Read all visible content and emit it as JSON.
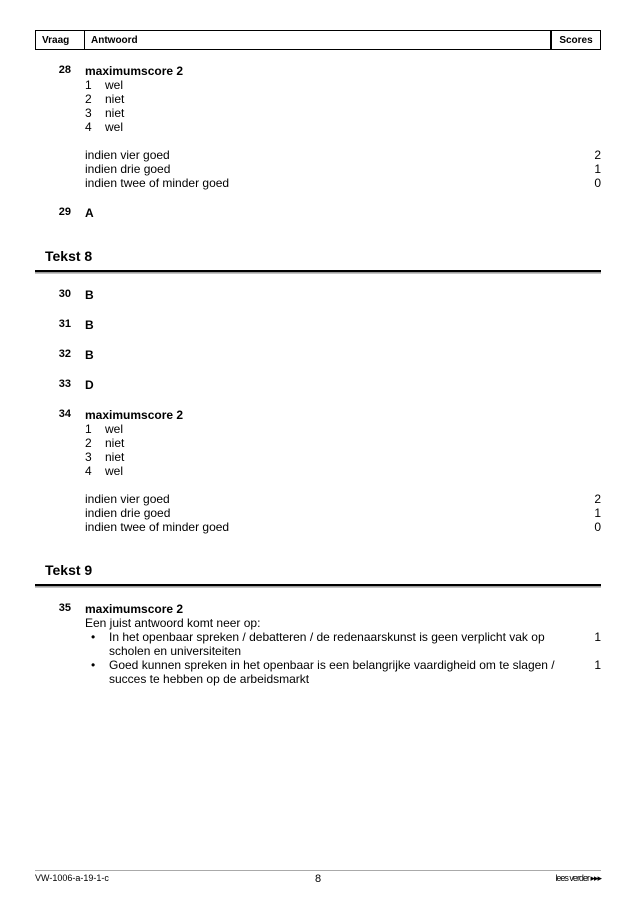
{
  "header": {
    "vraag": "Vraag",
    "antwoord": "Antwoord",
    "scores": "Scores"
  },
  "q28": {
    "num": "28",
    "max": "maximumscore 2",
    "rows": [
      {
        "n": "1",
        "v": "wel"
      },
      {
        "n": "2",
        "v": "niet"
      },
      {
        "n": "3",
        "v": "niet"
      },
      {
        "n": "4",
        "v": "wel"
      }
    ],
    "scoring": [
      {
        "t": "indien vier goed",
        "s": "2"
      },
      {
        "t": "indien drie goed",
        "s": "1"
      },
      {
        "t": "indien twee of minder goed",
        "s": "0"
      }
    ]
  },
  "q29": {
    "num": "29",
    "ans": "A"
  },
  "section8": "Tekst 8",
  "q30": {
    "num": "30",
    "ans": "B"
  },
  "q31": {
    "num": "31",
    "ans": "B"
  },
  "q32": {
    "num": "32",
    "ans": "B"
  },
  "q33": {
    "num": "33",
    "ans": "D"
  },
  "q34": {
    "num": "34",
    "max": "maximumscore 2",
    "rows": [
      {
        "n": "1",
        "v": "wel"
      },
      {
        "n": "2",
        "v": "niet"
      },
      {
        "n": "3",
        "v": "niet"
      },
      {
        "n": "4",
        "v": "wel"
      }
    ],
    "scoring": [
      {
        "t": "indien vier goed",
        "s": "2"
      },
      {
        "t": "indien drie goed",
        "s": "1"
      },
      {
        "t": "indien twee of minder goed",
        "s": "0"
      }
    ]
  },
  "section9": "Tekst 9",
  "q35": {
    "num": "35",
    "max": "maximumscore 2",
    "intro": "Een juist antwoord komt neer op:",
    "bullets": [
      {
        "t": "In het openbaar spreken / debatteren / de redenaarskunst is geen verplicht vak op scholen en universiteiten",
        "s": "1"
      },
      {
        "t": "Goed kunnen spreken in het openbaar is een belangrijke vaardigheid om te slagen / succes te hebben op de arbeidsmarkt",
        "s": "1"
      }
    ]
  },
  "footer": {
    "left": "VW-1006-a-19-1-c",
    "mid": "8",
    "right": "lees verder ▸▸▸"
  }
}
